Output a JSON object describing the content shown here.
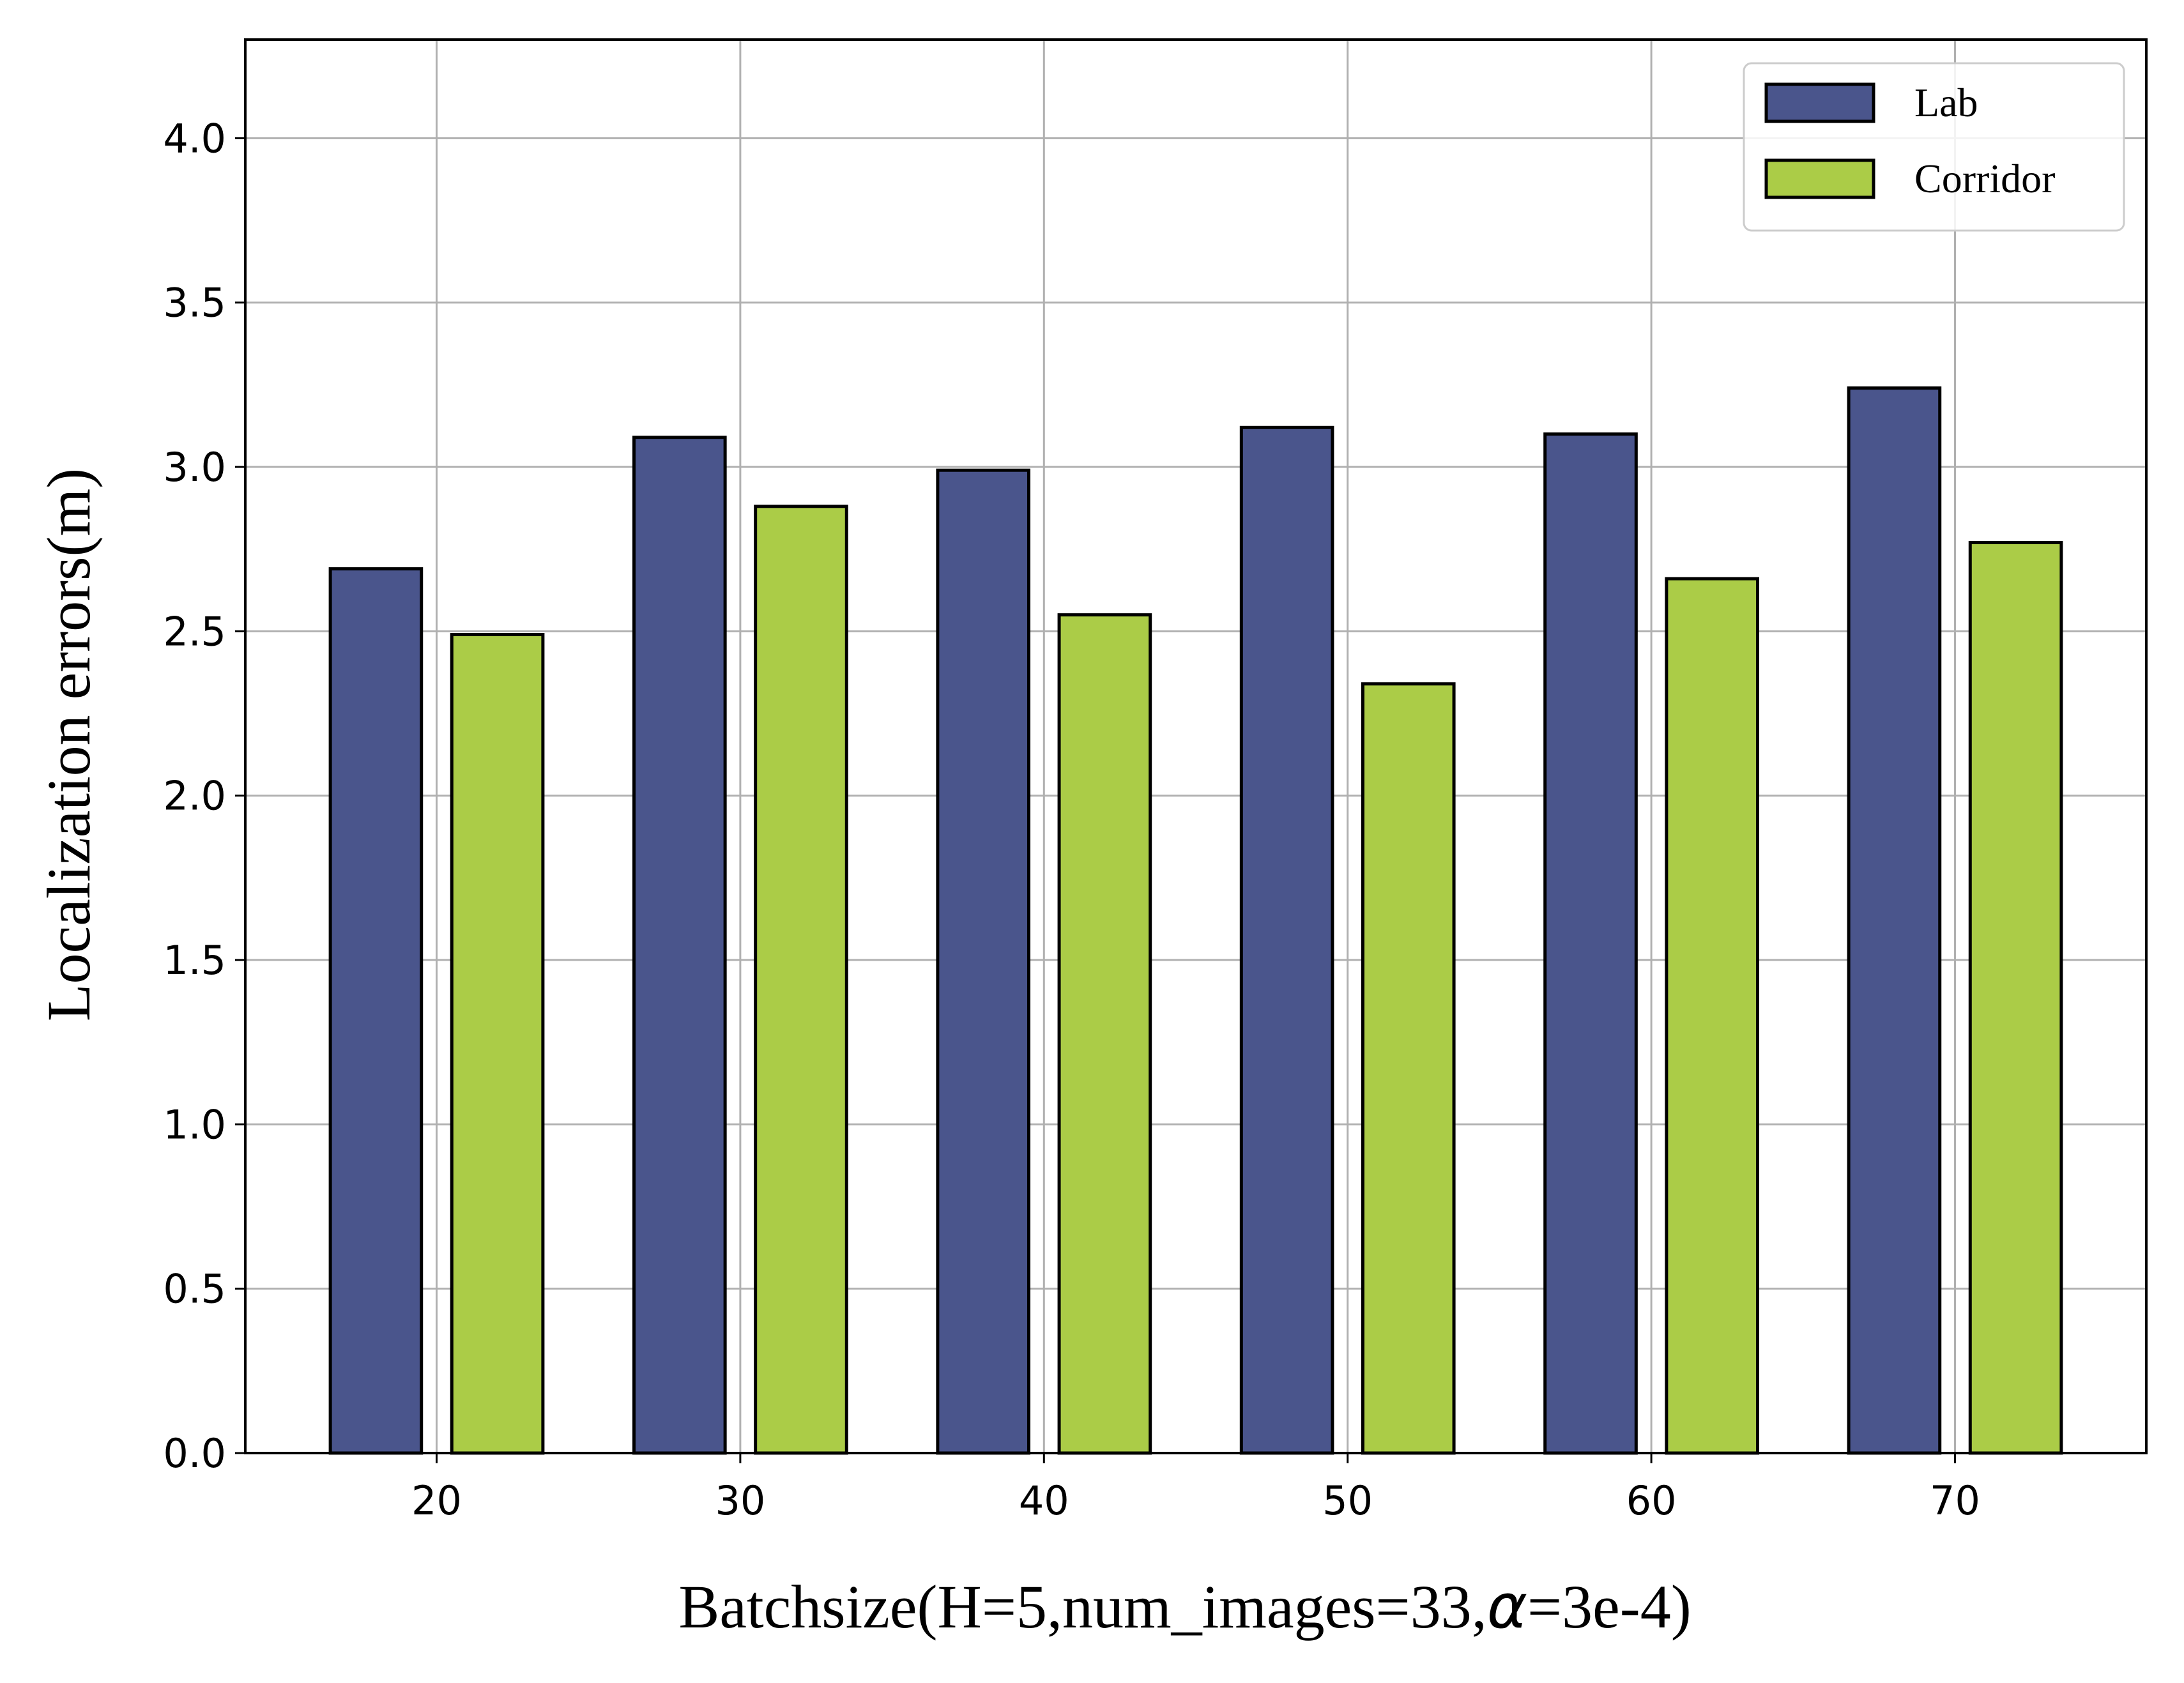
{
  "chart_data": {
    "type": "bar",
    "categories": [
      "20",
      "30",
      "40",
      "50",
      "60",
      "70"
    ],
    "x": [
      20,
      30,
      40,
      50,
      60,
      70
    ],
    "series": [
      {
        "name": "Lab",
        "color": "#4a558c",
        "values": [
          2.69,
          3.09,
          2.99,
          3.12,
          3.1,
          3.24
        ]
      },
      {
        "name": "Corridor",
        "color": "#abcc47",
        "values": [
          2.49,
          2.88,
          2.55,
          2.34,
          2.66,
          2.77
        ]
      }
    ],
    "xlabel_main": "Batchsize(H=5,num_images=33,",
    "xlabel_symbol": "α",
    "xlabel_tail": "=3e-4)",
    "ylabel": "Localization errors(m)",
    "xlim": [
      13.7,
      76.3
    ],
    "ylim": [
      0.0,
      4.3
    ],
    "yticks": [
      "0.0",
      "0.5",
      "1.0",
      "1.5",
      "2.0",
      "2.5",
      "3.0",
      "3.5",
      "4.0"
    ],
    "grid": true,
    "legend_position": "top-right"
  }
}
